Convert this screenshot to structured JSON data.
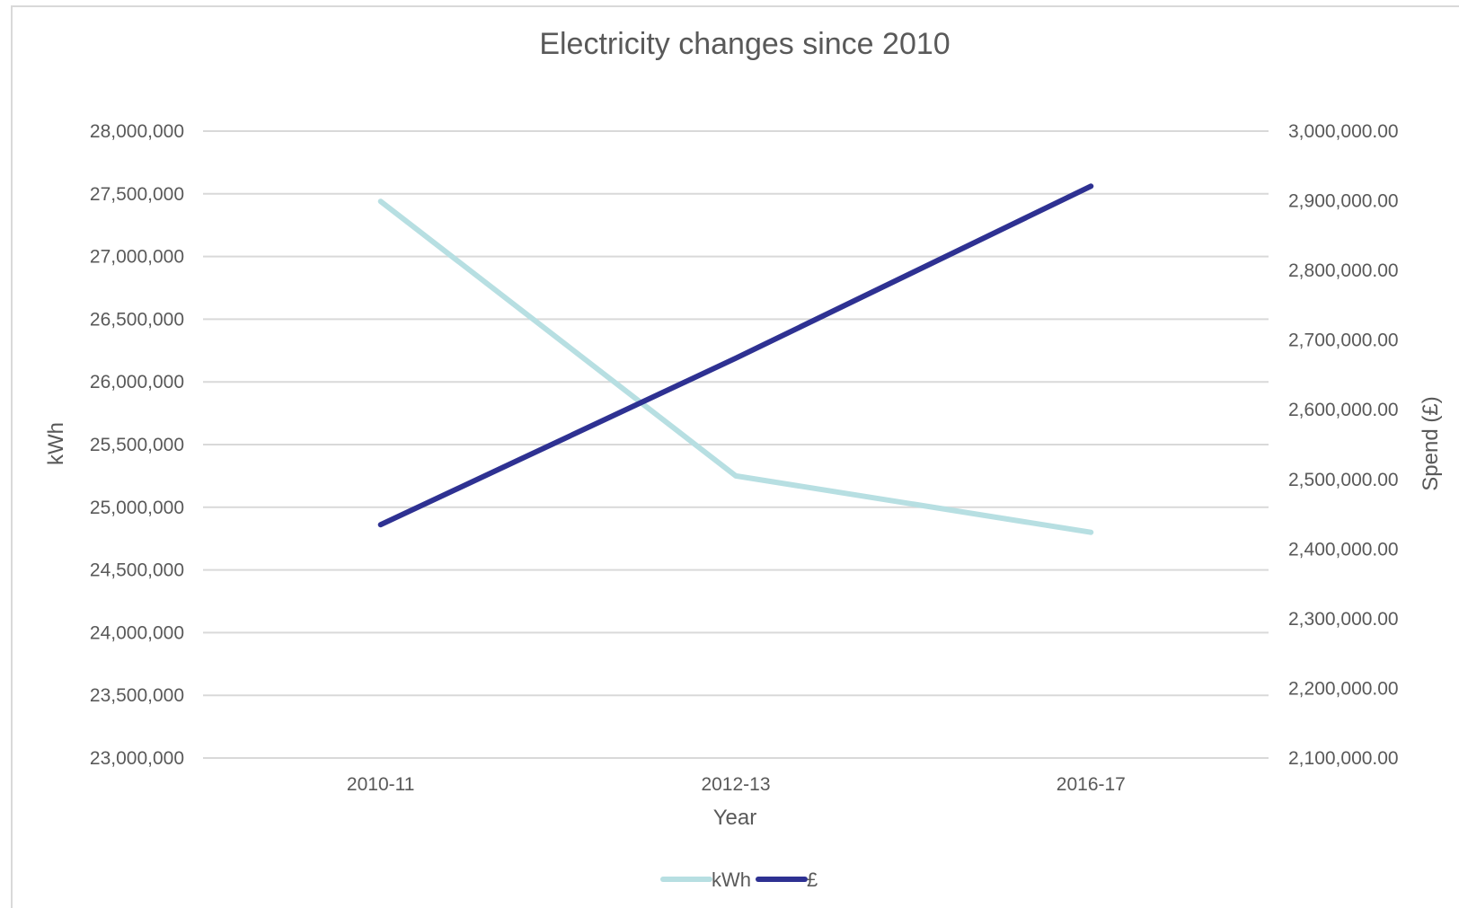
{
  "chart_data": {
    "type": "line",
    "title": "Electricity changes since 2010",
    "xlabel": "Year",
    "ylabel": "kWh",
    "y2label": "Spend (£)",
    "categories": [
      "2010-11",
      "2012-13",
      "2016-17"
    ],
    "series": [
      {
        "name": "kWh",
        "axis": "left",
        "color": "#b7dfe2",
        "values": [
          27440000,
          25250000,
          24800000
        ]
      },
      {
        "name": "£",
        "axis": "right",
        "color": "#2e3192",
        "values": [
          2435000,
          2674000,
          2921000
        ]
      }
    ],
    "ylim": [
      23000000,
      28000000
    ],
    "y_ticks": [
      "23,000,000",
      "23,500,000",
      "24,000,000",
      "24,500,000",
      "25,000,000",
      "25,500,000",
      "26,000,000",
      "26,500,000",
      "27,000,000",
      "27,500,000",
      "28,000,000"
    ],
    "y2lim": [
      2100000,
      3000000
    ],
    "y2_ticks": [
      "2,100,000.00",
      "2,200,000.00",
      "2,300,000.00",
      "2,400,000.00",
      "2,500,000.00",
      "2,600,000.00",
      "2,700,000.00",
      "2,800,000.00",
      "2,900,000.00",
      "3,000,000.00"
    ],
    "grid": true,
    "legend": "bottom",
    "gridline_color": "#d9d9d9"
  }
}
